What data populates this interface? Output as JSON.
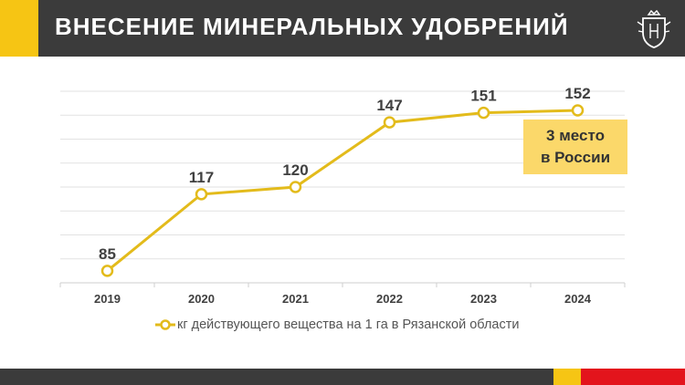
{
  "header": {
    "title": "ВНЕСЕНИЕ МИНЕРАЛЬНЫХ УДОБРЕНИЙ",
    "emblem_icon": "regional-coat-of-arms-icon"
  },
  "callout": {
    "line1": "3 место",
    "line2": "в России"
  },
  "colors": {
    "series": "#e3bb1b",
    "header_bg": "#3b3b3b",
    "accent_yellow": "#f6c514",
    "accent_red": "#e3141c",
    "callout_bg": "#fbd86a"
  },
  "chart_data": {
    "type": "line",
    "categories": [
      "2019",
      "2020",
      "2021",
      "2022",
      "2023",
      "2024"
    ],
    "series": [
      {
        "name": "кг действующего вещества на 1 га в Рязанской области",
        "values": [
          85,
          117,
          120,
          147,
          151,
          152
        ]
      }
    ],
    "data_labels": [
      "85",
      "117",
      "120",
      "147",
      "151",
      "152"
    ],
    "ylim": [
      80,
      160
    ],
    "grid": true,
    "legend_position": "bottom",
    "xlabel": "",
    "ylabel": ""
  }
}
